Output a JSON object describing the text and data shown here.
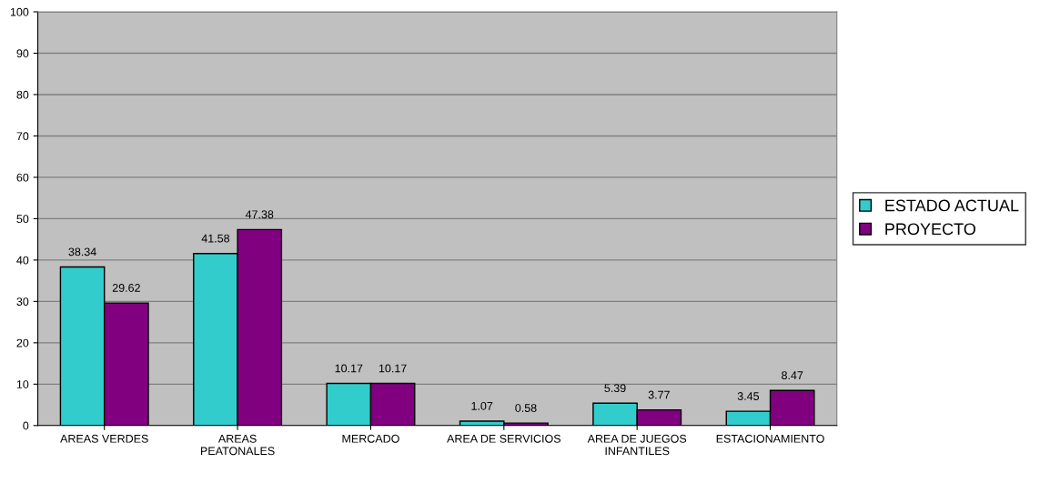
{
  "chart_data": {
    "type": "bar",
    "categories": [
      "AREAS VERDES",
      "AREAS\nPEATONALES",
      "MERCADO",
      "AREA DE SERVICIOS",
      "AREA DE JUEGOS\nINFANTILES",
      "ESTACIONAMIENTO"
    ],
    "series": [
      {
        "name": "ESTADO ACTUAL",
        "color": "#33cccc",
        "values": [
          38.34,
          41.58,
          10.17,
          1.07,
          5.39,
          3.45
        ]
      },
      {
        "name": "PROYECTO",
        "color": "#800080",
        "values": [
          29.62,
          47.38,
          10.17,
          0.58,
          3.77,
          8.47
        ]
      }
    ],
    "ylim": [
      0,
      100
    ],
    "yticks": [
      0,
      10,
      20,
      30,
      40,
      50,
      60,
      70,
      80,
      90,
      100
    ],
    "grid": "y",
    "legend": "right",
    "data_labels": true
  }
}
